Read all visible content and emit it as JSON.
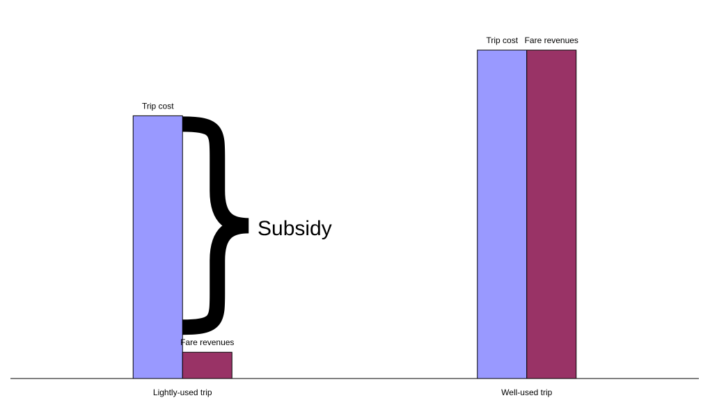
{
  "chart_data": {
    "type": "bar",
    "categories": [
      "Lightly-used trip",
      "Well-used trip"
    ],
    "series": [
      {
        "name": "Trip cost",
        "color": "#9999ff",
        "values": [
          80,
          100
        ]
      },
      {
        "name": "Fare revenues",
        "color": "#993366",
        "values": [
          8,
          100
        ]
      }
    ],
    "ylim": [
      0,
      100
    ],
    "annotation": "Subsidy"
  }
}
